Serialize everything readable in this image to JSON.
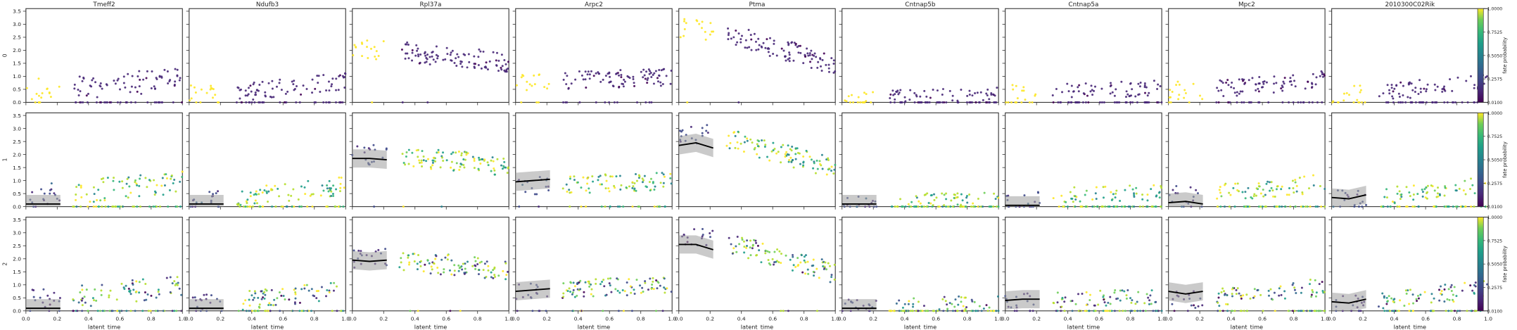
{
  "chart_data": {
    "type": "scatter",
    "title": "",
    "genes": [
      "Tmeff2",
      "Ndufb3",
      "Rpl37a",
      "Arpc2",
      "Ptma",
      "Cntnap5b",
      "Cntnap5a",
      "Mpc2",
      "2010300C02Rik"
    ],
    "row_labels": [
      "0",
      "1",
      "2"
    ],
    "xlabel": "latent_time",
    "xlim": [
      0,
      1
    ],
    "ylim": [
      0,
      3.6
    ],
    "x_ticks": [
      0.0,
      0.2,
      0.4,
      0.6,
      0.8,
      1.0
    ],
    "x_tick_labels": [
      "0.0",
      "0.2",
      "0.4",
      "0.6",
      "0.8",
      "1.0"
    ],
    "y_ticks": [
      0.0,
      0.5,
      1.0,
      1.5,
      2.0,
      2.5,
      3.0,
      3.5
    ],
    "y_tick_labels": [
      "0.0",
      "0.5",
      "1.0",
      "1.5",
      "2.0",
      "2.5",
      "3.0",
      "3.5"
    ],
    "colorbar": {
      "label": "fate probability",
      "ticks": [
        0.01,
        0.2575,
        0.505,
        0.7525,
        1.0
      ],
      "tick_labels": [
        "0.0100",
        "0.2575",
        "0.5050",
        "0.7525",
        "1.0000"
      ],
      "colormap": "viridis"
    },
    "trend_lines": {
      "Tmeff2": [
        [
          0.1,
          0.1,
          0.1
        ],
        [
          0.1,
          0.1,
          0.1
        ]
      ],
      "Ndufb3": [
        [
          0.1,
          0.1,
          0.1
        ],
        [
          0.1,
          0.1,
          0.1
        ]
      ],
      "Rpl37a": [
        [
          1.85,
          1.85,
          1.8
        ],
        [
          1.95,
          1.9,
          1.95
        ]
      ],
      "Arpc2": [
        [
          0.95,
          1.0,
          1.05
        ],
        [
          0.75,
          0.8,
          0.85
        ]
      ],
      "Ptma": [
        [
          2.35,
          2.45,
          2.25
        ],
        [
          2.55,
          2.55,
          2.35
        ]
      ],
      "Cntnap5b": [
        [
          0.1,
          0.1,
          0.1
        ],
        [
          0.1,
          0.1,
          0.1
        ]
      ],
      "Cntnap5a": [
        [
          0.05,
          0.05,
          0.05
        ],
        [
          0.4,
          0.45,
          0.45
        ]
      ],
      "Mpc2": [
        [
          0.15,
          0.2,
          0.1
        ],
        [
          0.75,
          0.65,
          0.75
        ]
      ],
      "2010300C02Rik": [
        [
          0.35,
          0.3,
          0.45
        ],
        [
          0.35,
          0.3,
          0.45
        ]
      ]
    },
    "scatter_profiles": {
      "Tmeff2": {
        "early": 0.5,
        "late": 0.9,
        "spread": 0.45,
        "zero_frac": 0.35
      },
      "Ndufb3": {
        "early": 0.3,
        "late": 0.8,
        "spread": 0.35,
        "zero_frac": 0.35
      },
      "Rpl37a": {
        "early": 2.0,
        "late": 1.55,
        "spread": 0.4,
        "zero_frac": 0.02
      },
      "Arpc2": {
        "early": 0.8,
        "late": 1.0,
        "spread": 0.35,
        "zero_frac": 0.15
      },
      "Ptma": {
        "early": 2.8,
        "late": 1.45,
        "spread": 0.4,
        "zero_frac": 0.02
      },
      "Cntnap5b": {
        "early": 0.2,
        "late": 0.35,
        "spread": 0.25,
        "zero_frac": 0.55
      },
      "Cntnap5a": {
        "early": 0.4,
        "late": 0.55,
        "spread": 0.3,
        "zero_frac": 0.45
      },
      "Mpc2": {
        "early": 0.45,
        "late": 0.9,
        "spread": 0.35,
        "zero_frac": 0.3
      },
      "2010300C02Rik": {
        "early": 0.3,
        "late": 0.85,
        "spread": 0.35,
        "zero_frac": 0.35
      }
    }
  }
}
